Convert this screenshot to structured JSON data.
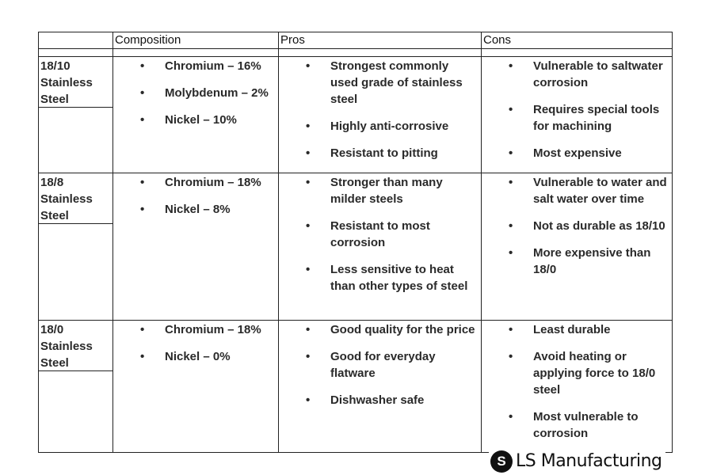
{
  "headers": [
    "",
    "Composition",
    "Pros",
    "Cons"
  ],
  "rows": [
    {
      "label": "18/10 Stainless Steel",
      "composition": [
        "Chromium – 16%",
        "Molybdenum – 2%",
        "Nickel – 10%"
      ],
      "pros": [
        "Strongest commonly used grade of stainless steel",
        "Highly anti-corrosive",
        "Resistant to pitting"
      ],
      "cons": [
        "Vulnerable to saltwater corrosion",
        "Requires special tools for machining",
        "Most expensive"
      ]
    },
    {
      "label": "18/8 Stainless Steel",
      "composition": [
        "Chromium – 18%",
        "Nickel – 8%"
      ],
      "pros": [
        "Stronger than many milder steels",
        "Resistant to most corrosion",
        "Less sensitive to heat than other types of steel"
      ],
      "cons": [
        "Vulnerable to water and salt water over time",
        "Not as durable as 18/10",
        "More expensive than 18/0"
      ]
    },
    {
      "label": "18/0 Stainless Steel",
      "composition": [
        "Chromium – 18%",
        "Nickel – 0%"
      ],
      "pros": [
        "Good quality for the price",
        "Good for everyday flatware",
        "Dishwasher safe"
      ],
      "cons": [
        "Least durable",
        "Avoid heating or applying force to 18/0 steel",
        "Most vulnerable to corrosion"
      ]
    }
  ],
  "watermark": {
    "text": "LS Manufacturing",
    "icon": "ls-logo-icon"
  }
}
